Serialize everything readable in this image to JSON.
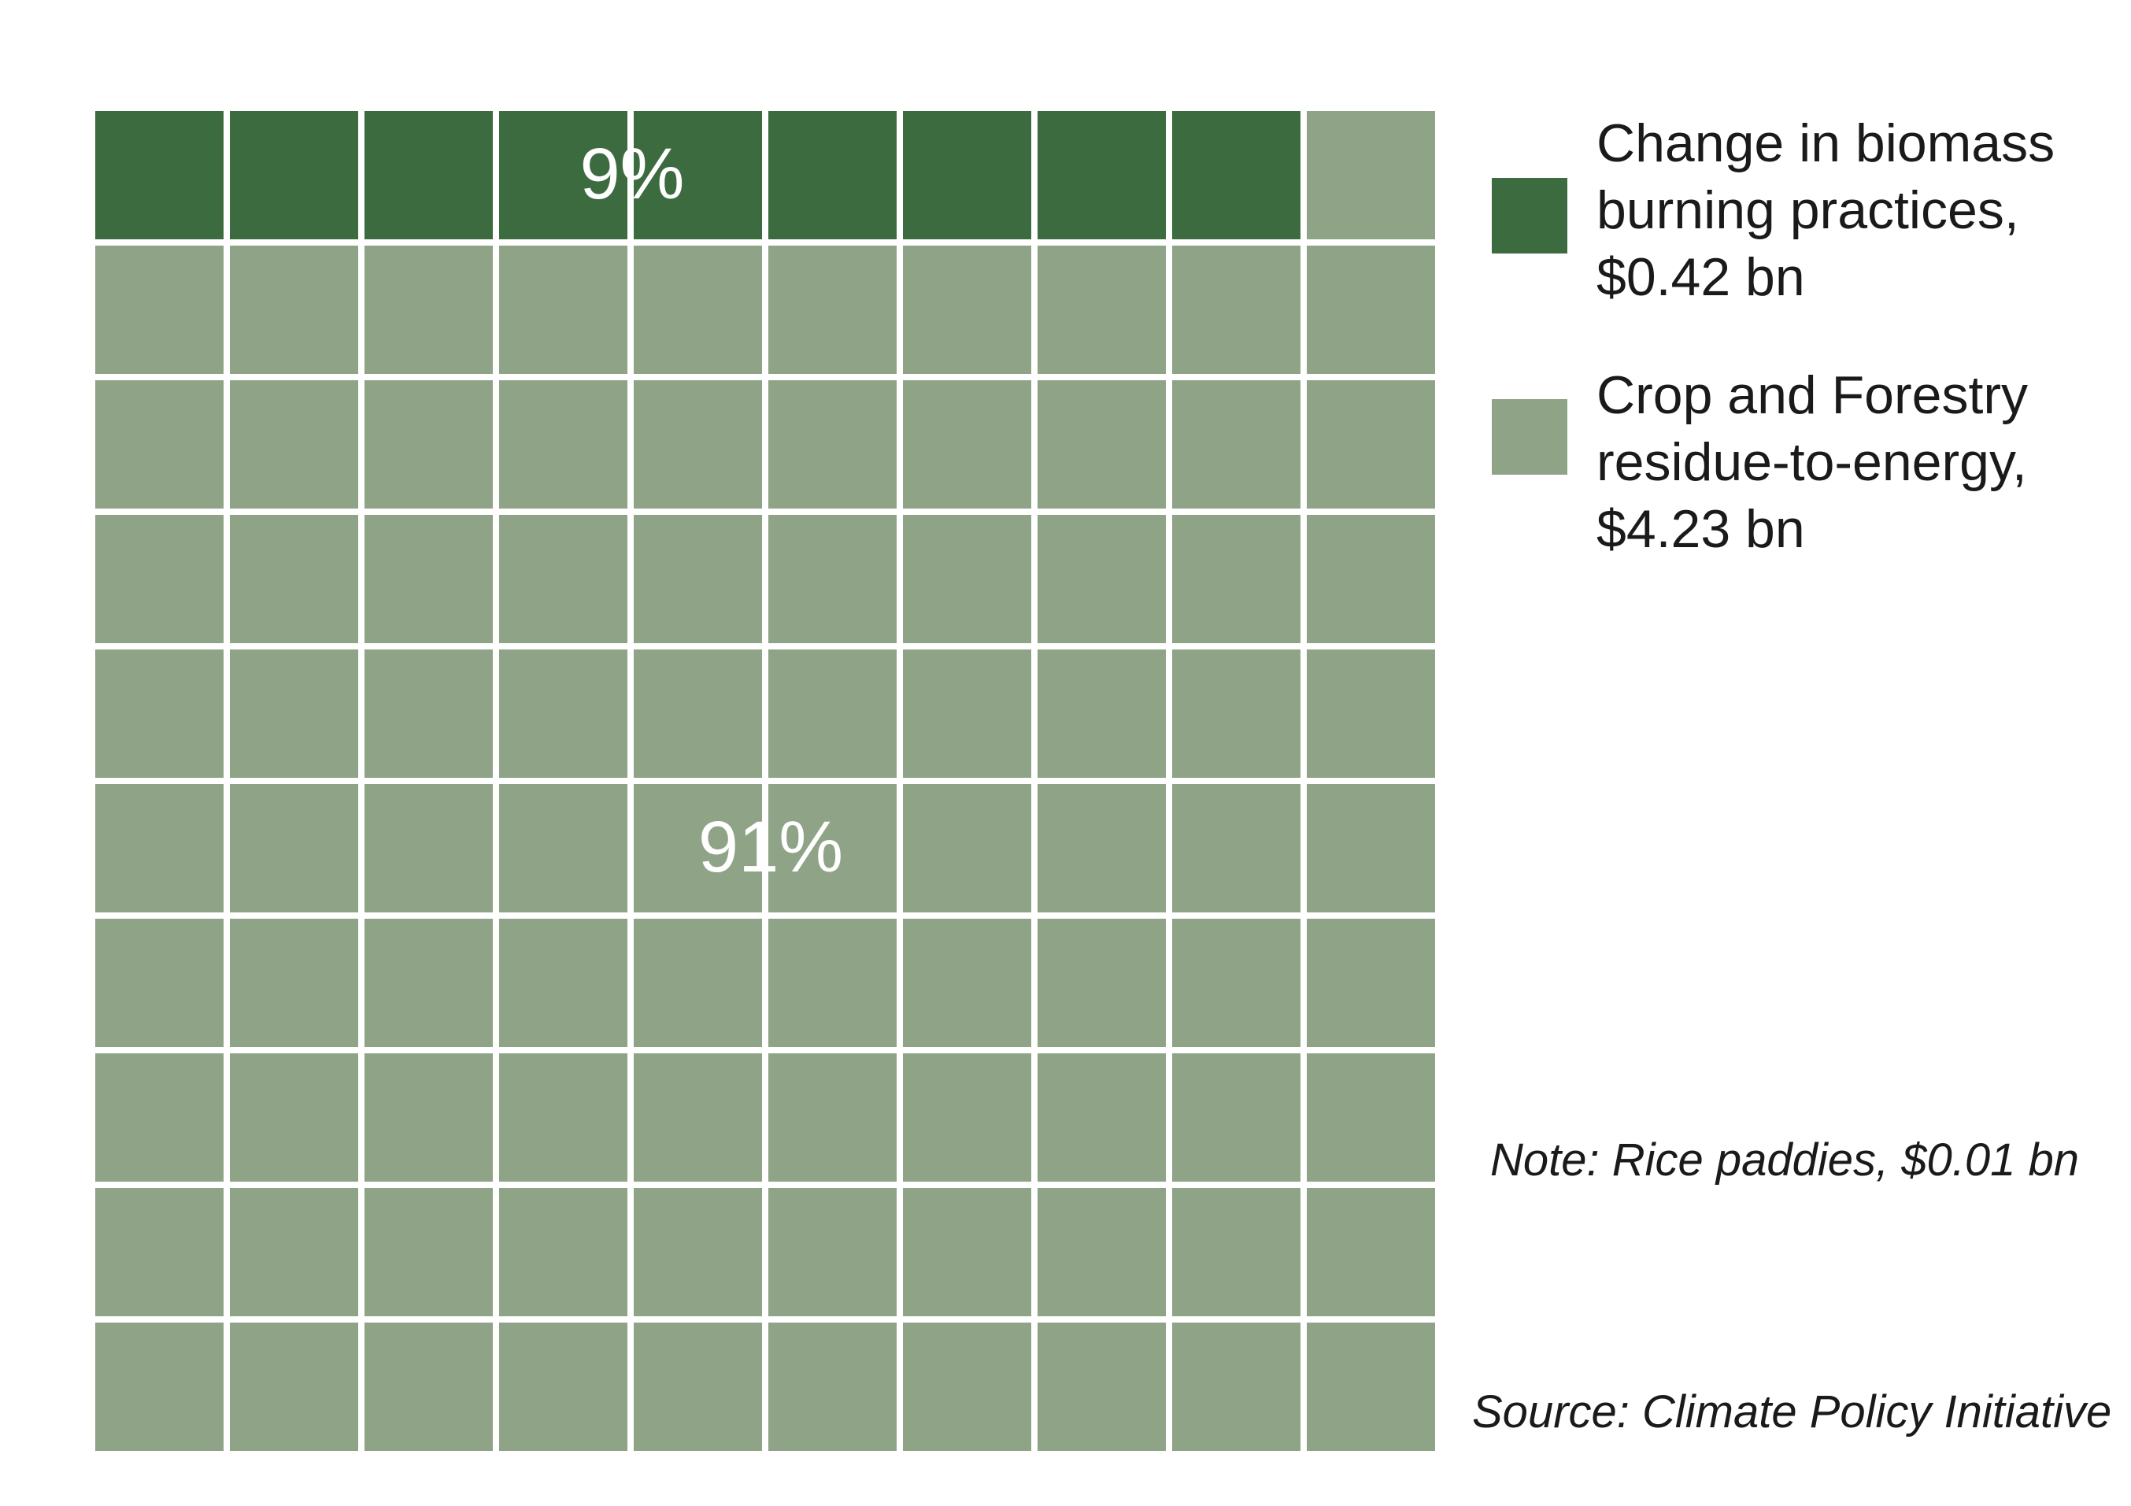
{
  "chart_data": {
    "type": "waffle",
    "total_cells": 100,
    "rows": 10,
    "cols": 10,
    "series": [
      {
        "name": "Change in biomass burning practices, $0.42 bn",
        "cells": 9,
        "percent_label": "9%",
        "color": "#3b6b3f"
      },
      {
        "name": "Crop and Forestry residue-to-energy, $4.23 bn",
        "cells": 91,
        "percent_label": "91%",
        "color": "#8fa387"
      }
    ]
  },
  "legend": [
    {
      "lines": [
        "Change in biomass",
        "burning practices,",
        "$0.42 bn"
      ],
      "color": "#3b6b3f"
    },
    {
      "lines": [
        "Crop and Forestry",
        "residue-to-energy,",
        "$4.23 bn"
      ],
      "color": "#8fa387"
    }
  ],
  "note": "Note: Rice paddies, $0.01 bn",
  "source": "Source: Climate Policy Initiative"
}
